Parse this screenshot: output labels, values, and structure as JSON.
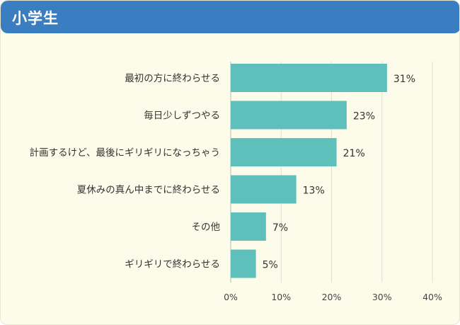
{
  "header": {
    "title": "小学生"
  },
  "colors": {
    "header": "#3a7ec1",
    "bar": "#5fc0bb",
    "background": "#fdfbea",
    "grid": "#e2dfcf"
  },
  "chart_data": {
    "type": "bar",
    "orientation": "horizontal",
    "categories": [
      "最初の方に終わらせる",
      "毎日少しずつやる",
      "計画するけど、最後にギリギリになっちゃう",
      "夏休みの真ん中までに終わらせる",
      "その他",
      "ギリギリで終わらせる"
    ],
    "values": [
      31,
      23,
      21,
      13,
      7,
      5
    ],
    "value_labels": [
      "31%",
      "23%",
      "21%",
      "13%",
      "7%",
      "5%"
    ],
    "xlim": [
      0,
      40
    ],
    "xticks": [
      0,
      10,
      20,
      30,
      40
    ],
    "xtick_labels": [
      "0%",
      "10%",
      "20%",
      "30%",
      "40%"
    ],
    "grid": true
  }
}
